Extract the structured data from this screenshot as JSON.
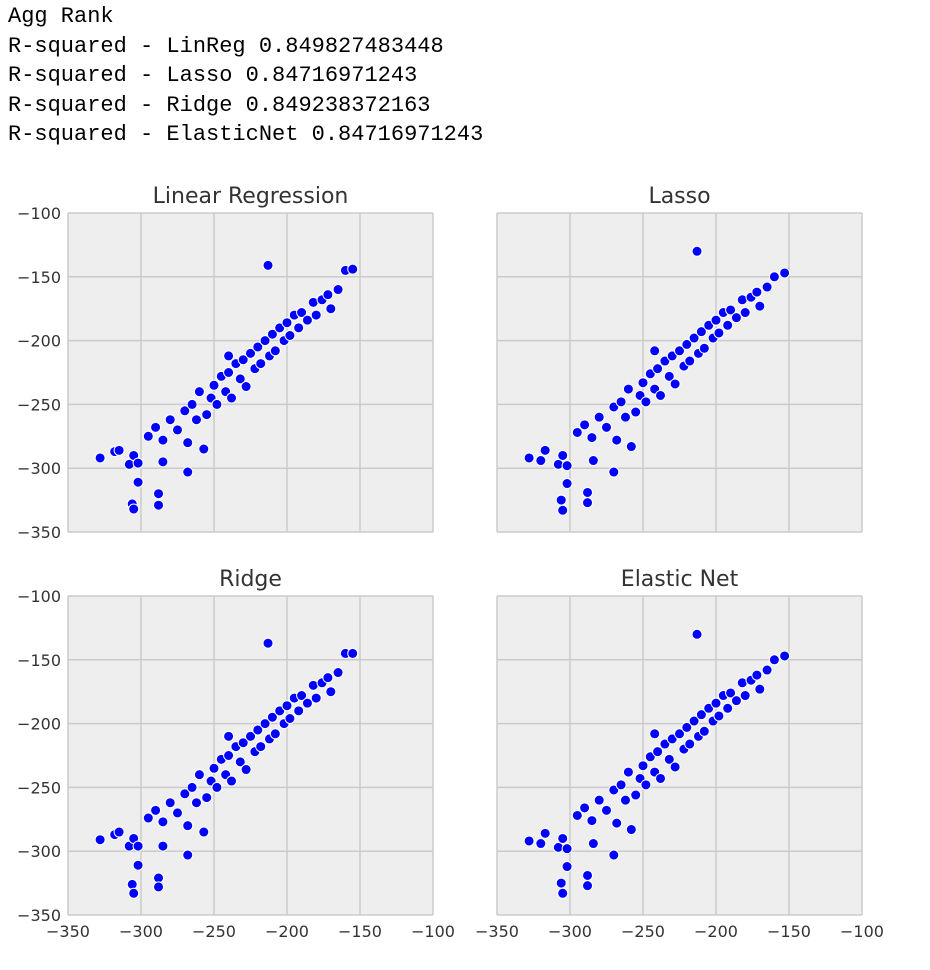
{
  "output_text": [
    "Agg Rank",
    "R-squared - LinReg 0.849827483448",
    "R-squared - Lasso 0.84716971243",
    "R-squared - Ridge 0.849238372163",
    "R-squared - ElasticNet 0.84716971243"
  ],
  "chart_data": [
    {
      "type": "scatter",
      "title": "Linear Regression",
      "color": "#0000ff",
      "grid": true,
      "xlim": [
        -350,
        -100
      ],
      "ylim": [
        -350,
        -100
      ],
      "xticks": [
        -350,
        -300,
        -250,
        -200,
        -150,
        -100
      ],
      "yticks": [
        {
          "value": -350,
          "label": "−350"
        },
        {
          "value": -300,
          "label": "−300"
        },
        {
          "value": -250,
          "label": "−250"
        },
        {
          "value": -200,
          "label": "−200"
        },
        {
          "value": -150,
          "label": "−150"
        },
        {
          "value": -100,
          "label": "−100"
        }
      ],
      "x": [
        -328,
        -318,
        -315,
        -308,
        -305,
        -302,
        -306,
        -305,
        -302,
        -288,
        -288,
        -295,
        -290,
        -285,
        -280,
        -275,
        -270,
        -268,
        -265,
        -262,
        -260,
        -255,
        -252,
        -250,
        -248,
        -245,
        -242,
        -240,
        -238,
        -235,
        -232,
        -230,
        -228,
        -225,
        -222,
        -220,
        -218,
        -215,
        -212,
        -210,
        -208,
        -205,
        -202,
        -200,
        -198,
        -195,
        -192,
        -190,
        -186,
        -182,
        -180,
        -176,
        -172,
        -170,
        -165,
        -160,
        -155,
        -213,
        -240,
        -268,
        -257,
        -285
      ],
      "values": [
        -292,
        -287,
        -286,
        -297,
        -290,
        -296,
        -328,
        -332,
        -311,
        -320,
        -329,
        -275,
        -268,
        -278,
        -262,
        -270,
        -255,
        -280,
        -250,
        -262,
        -240,
        -258,
        -245,
        -235,
        -250,
        -228,
        -240,
        -225,
        -245,
        -218,
        -230,
        -215,
        -236,
        -210,
        -222,
        -205,
        -218,
        -200,
        -212,
        -195,
        -208,
        -190,
        -200,
        -186,
        -196,
        -180,
        -190,
        -178,
        -184,
        -170,
        -180,
        -168,
        -164,
        -175,
        -160,
        -145,
        -144,
        -141,
        -212,
        -303,
        -285,
        -295
      ]
    },
    {
      "type": "scatter",
      "title": "Lasso",
      "color": "#0000ff",
      "grid": true,
      "xlim": [
        -350,
        -100
      ],
      "ylim": [
        -350,
        -100
      ],
      "xticks": [
        -350,
        -300,
        -250,
        -200,
        -150,
        -100
      ],
      "yticks": [
        -350,
        -300,
        -250,
        -200,
        -150,
        -100
      ],
      "x": [
        -328,
        -320,
        -317,
        -308,
        -305,
        -302,
        -306,
        -305,
        -302,
        -288,
        -288,
        -295,
        -290,
        -285,
        -280,
        -275,
        -270,
        -268,
        -265,
        -262,
        -260,
        -255,
        -252,
        -250,
        -248,
        -245,
        -242,
        -240,
        -238,
        -235,
        -232,
        -230,
        -228,
        -225,
        -222,
        -220,
        -218,
        -215,
        -212,
        -210,
        -208,
        -205,
        -202,
        -200,
        -198,
        -195,
        -192,
        -190,
        -186,
        -182,
        -180,
        -176,
        -172,
        -170,
        -165,
        -160,
        -153,
        -213,
        -242,
        -270,
        -258,
        -284
      ],
      "values": [
        -292,
        -294,
        -286,
        -297,
        -290,
        -298,
        -325,
        -333,
        -312,
        -319,
        -327,
        -272,
        -266,
        -276,
        -260,
        -268,
        -252,
        -278,
        -248,
        -260,
        -238,
        -256,
        -243,
        -233,
        -248,
        -226,
        -238,
        -222,
        -243,
        -216,
        -228,
        -212,
        -234,
        -208,
        -220,
        -203,
        -216,
        -198,
        -210,
        -193,
        -206,
        -188,
        -198,
        -184,
        -194,
        -178,
        -188,
        -176,
        -182,
        -168,
        -178,
        -166,
        -162,
        -173,
        -158,
        -150,
        -147,
        -130,
        -208,
        -303,
        -283,
        -294
      ]
    },
    {
      "type": "scatter",
      "title": "Ridge",
      "color": "#0000ff",
      "grid": true,
      "xlim": [
        -350,
        -100
      ],
      "ylim": [
        -350,
        -100
      ],
      "xticks": [
        {
          "value": -350,
          "label": "−350"
        },
        {
          "value": -300,
          "label": "−300"
        },
        {
          "value": -250,
          "label": "−250"
        },
        {
          "value": -200,
          "label": "−200"
        },
        {
          "value": -150,
          "label": "−150"
        },
        {
          "value": -100,
          "label": "−100"
        }
      ],
      "yticks": [
        {
          "value": -350,
          "label": "−350"
        },
        {
          "value": -300,
          "label": "−300"
        },
        {
          "value": -250,
          "label": "−250"
        },
        {
          "value": -200,
          "label": "−200"
        },
        {
          "value": -150,
          "label": "−150"
        },
        {
          "value": -100,
          "label": "−100"
        }
      ],
      "x": [
        -328,
        -318,
        -315,
        -308,
        -305,
        -302,
        -306,
        -305,
        -302,
        -288,
        -288,
        -295,
        -290,
        -285,
        -280,
        -275,
        -270,
        -268,
        -265,
        -262,
        -260,
        -255,
        -252,
        -250,
        -248,
        -245,
        -242,
        -240,
        -238,
        -235,
        -232,
        -230,
        -228,
        -225,
        -222,
        -220,
        -218,
        -215,
        -212,
        -210,
        -208,
        -205,
        -202,
        -200,
        -198,
        -195,
        -192,
        -190,
        -186,
        -182,
        -180,
        -176,
        -172,
        -170,
        -165,
        -160,
        -155,
        -213,
        -240,
        -268,
        -257,
        -285
      ],
      "values": [
        -291,
        -287,
        -285,
        -296,
        -290,
        -296,
        -326,
        -333,
        -311,
        -321,
        -328,
        -274,
        -268,
        -277,
        -262,
        -270,
        -255,
        -280,
        -250,
        -262,
        -240,
        -258,
        -245,
        -235,
        -250,
        -228,
        -240,
        -225,
        -245,
        -218,
        -230,
        -215,
        -236,
        -210,
        -222,
        -205,
        -218,
        -200,
        -212,
        -195,
        -208,
        -190,
        -200,
        -186,
        -196,
        -180,
        -190,
        -178,
        -184,
        -170,
        -180,
        -168,
        -164,
        -175,
        -160,
        -145,
        -145,
        -137,
        -210,
        -303,
        -285,
        -296
      ]
    },
    {
      "type": "scatter",
      "title": "Elastic Net",
      "color": "#0000ff",
      "grid": true,
      "xlim": [
        -350,
        -100
      ],
      "ylim": [
        -350,
        -100
      ],
      "xticks": [
        {
          "value": -350,
          "label": "−350"
        },
        {
          "value": -300,
          "label": "−300"
        },
        {
          "value": -250,
          "label": "−250"
        },
        {
          "value": -200,
          "label": "−200"
        },
        {
          "value": -150,
          "label": "−150"
        },
        {
          "value": -100,
          "label": "−100"
        }
      ],
      "yticks": [
        -350,
        -300,
        -250,
        -200,
        -150,
        -100
      ],
      "x": [
        -328,
        -320,
        -317,
        -308,
        -305,
        -302,
        -306,
        -305,
        -302,
        -288,
        -288,
        -295,
        -290,
        -285,
        -280,
        -275,
        -270,
        -268,
        -265,
        -262,
        -260,
        -255,
        -252,
        -250,
        -248,
        -245,
        -242,
        -240,
        -238,
        -235,
        -232,
        -230,
        -228,
        -225,
        -222,
        -220,
        -218,
        -215,
        -212,
        -210,
        -208,
        -205,
        -202,
        -200,
        -198,
        -195,
        -192,
        -190,
        -186,
        -182,
        -180,
        -176,
        -172,
        -170,
        -165,
        -160,
        -153,
        -213,
        -242,
        -270,
        -258,
        -284
      ],
      "values": [
        -292,
        -294,
        -286,
        -297,
        -290,
        -298,
        -325,
        -333,
        -312,
        -319,
        -327,
        -272,
        -266,
        -276,
        -260,
        -268,
        -252,
        -278,
        -248,
        -260,
        -238,
        -256,
        -243,
        -233,
        -248,
        -226,
        -238,
        -222,
        -243,
        -216,
        -228,
        -212,
        -234,
        -208,
        -220,
        -203,
        -216,
        -198,
        -210,
        -193,
        -206,
        -188,
        -198,
        -184,
        -194,
        -178,
        -188,
        -176,
        -182,
        -168,
        -178,
        -166,
        -162,
        -173,
        -158,
        -150,
        -147,
        -130,
        -208,
        -303,
        -283,
        -294
      ]
    }
  ]
}
